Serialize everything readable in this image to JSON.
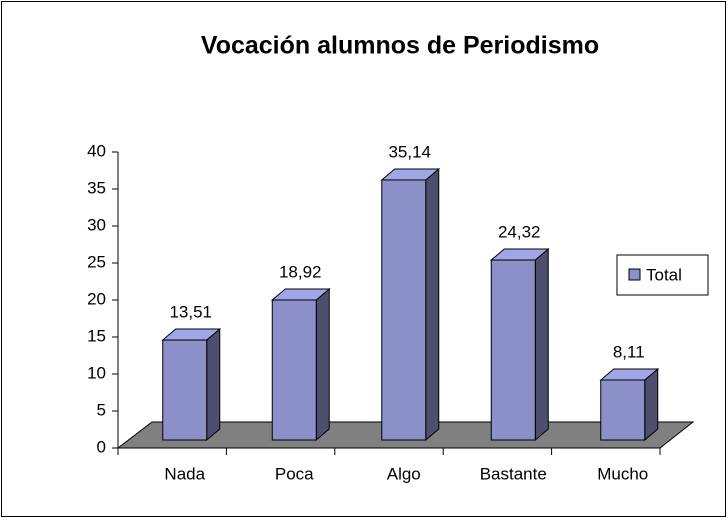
{
  "chart_data": {
    "type": "bar3d",
    "title": "Vocación alumnos de Periodismo",
    "categories": [
      "Nada",
      "Poca",
      "Algo",
      "Bastante",
      "Mucho"
    ],
    "series": [
      {
        "name": "Total",
        "color": "#8c90c8",
        "values": [
          13.51,
          18.92,
          35.14,
          24.32,
          8.11
        ],
        "value_labels": [
          "13,51",
          "18,92",
          "35,14",
          "24,32",
          "8,11"
        ]
      }
    ],
    "ylim": [
      0,
      40
    ],
    "yticks": [
      0,
      5,
      10,
      15,
      20,
      25,
      30,
      35,
      40
    ],
    "legend": "right"
  }
}
